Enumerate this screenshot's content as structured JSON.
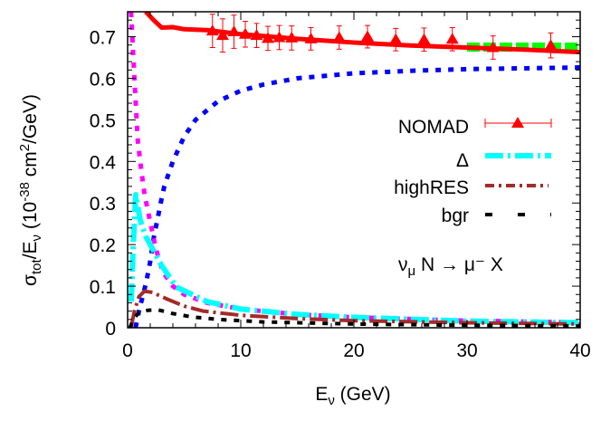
{
  "chart_data": {
    "type": "line",
    "title": "",
    "xlabel": "E_ν (GeV)",
    "ylabel": "σ_tot/E_ν (10^-38 cm^2/GeV)",
    "xlim": [
      0,
      40
    ],
    "ylim": [
      0,
      0.76
    ],
    "xticks": [
      "0",
      "10",
      "20",
      "30",
      "40"
    ],
    "yticks": [
      "0",
      "0.1",
      "0.2",
      "0.3",
      "0.4",
      "0.5",
      "0.6",
      "0.7"
    ],
    "grid": false,
    "legend_position": "right",
    "annotation": "ν_μ N → μ⁻ X",
    "series": [
      {
        "name": "NOMAD",
        "kind": "points",
        "color": "#ff0000",
        "x": [
          7.5,
          8.4,
          9.4,
          10.4,
          11.4,
          12.4,
          13.4,
          14.5,
          16.2,
          18.7,
          21.2,
          23.7,
          26.2,
          28.7,
          32.3,
          37.4
        ],
        "y": [
          0.714,
          0.703,
          0.712,
          0.706,
          0.703,
          0.696,
          0.698,
          0.697,
          0.695,
          0.698,
          0.7,
          0.693,
          0.693,
          0.694,
          0.674,
          0.679
        ],
        "err": [
          0.04,
          0.04,
          0.04,
          0.031,
          0.029,
          0.029,
          0.029,
          0.029,
          0.027,
          0.028,
          0.027,
          0.027,
          0.028,
          0.028,
          0.028,
          0.03
        ]
      },
      {
        "name": "Δ",
        "kind": "dash-dot",
        "color": "#00ffff",
        "x": [
          0.32,
          0.5,
          0.72,
          1.1,
          1.6,
          2.2,
          3.0,
          4.3,
          7,
          10,
          15,
          20,
          30,
          40
        ],
        "y": [
          0.063,
          0.2,
          0.32,
          0.26,
          0.22,
          0.19,
          0.15,
          0.098,
          0.063,
          0.045,
          0.032,
          0.025,
          0.016,
          0.012
        ]
      },
      {
        "name": "highRES",
        "kind": "dash-dot",
        "color": "#a52a2a",
        "x": [
          0.3,
          0.6,
          1.0,
          1.5,
          2.2,
          3.4,
          5,
          6.7,
          10,
          15,
          20,
          30,
          40
        ],
        "y": [
          0.0,
          0.04,
          0.075,
          0.088,
          0.085,
          0.07,
          0.052,
          0.04,
          0.03,
          0.022,
          0.017,
          0.012,
          0.009
        ]
      },
      {
        "name": "bgr",
        "kind": "dotted",
        "color": "#000000",
        "x": [
          0.2,
          0.5,
          1.0,
          1.8,
          2.7,
          4,
          5.7,
          8,
          12,
          20,
          30,
          40
        ],
        "y": [
          0.0,
          0.02,
          0.037,
          0.042,
          0.043,
          0.034,
          0.026,
          0.02,
          0.014,
          0.009,
          0.006,
          0.004
        ]
      },
      {
        "kind": "dotted",
        "color": "#0000ff",
        "x": [
          0.7,
          1,
          1.65,
          2,
          2.3,
          3,
          3.25,
          4,
          5,
          6,
          8,
          10,
          12,
          15,
          20,
          25,
          30,
          35,
          40
        ],
        "y": [
          0.0,
          0.04,
          0.11,
          0.16,
          0.215,
          0.31,
          0.341,
          0.4,
          0.46,
          0.5,
          0.545,
          0.57,
          0.585,
          0.6,
          0.612,
          0.618,
          0.622,
          0.624,
          0.626
        ]
      },
      {
        "kind": "dotted",
        "color": "#ff00ff",
        "x": [
          0.3,
          0.6,
          0.9,
          1.2,
          1.5,
          1.8,
          2.5,
          3.1,
          4,
          5,
          7,
          10,
          15,
          20,
          30,
          40
        ],
        "y": [
          0.76,
          0.6,
          0.45,
          0.38,
          0.32,
          0.28,
          0.19,
          0.135,
          0.1,
          0.08,
          0.06,
          0.045,
          0.032,
          0.025,
          0.017,
          0.013
        ]
      },
      {
        "kind": "solid",
        "color": "#ff0000",
        "x": [
          1.6,
          2.3,
          3,
          4,
          5,
          7,
          10,
          15,
          20,
          25,
          30,
          35,
          40
        ],
        "y": [
          0.76,
          0.74,
          0.722,
          0.723,
          0.718,
          0.716,
          0.706,
          0.695,
          0.686,
          0.679,
          0.674,
          0.669,
          0.663
        ]
      },
      {
        "kind": "band",
        "color": "#00ff00",
        "x": [
          30,
          40
        ],
        "y": [
          0.675,
          0.675
        ],
        "halfwidth": 0.011
      }
    ]
  }
}
